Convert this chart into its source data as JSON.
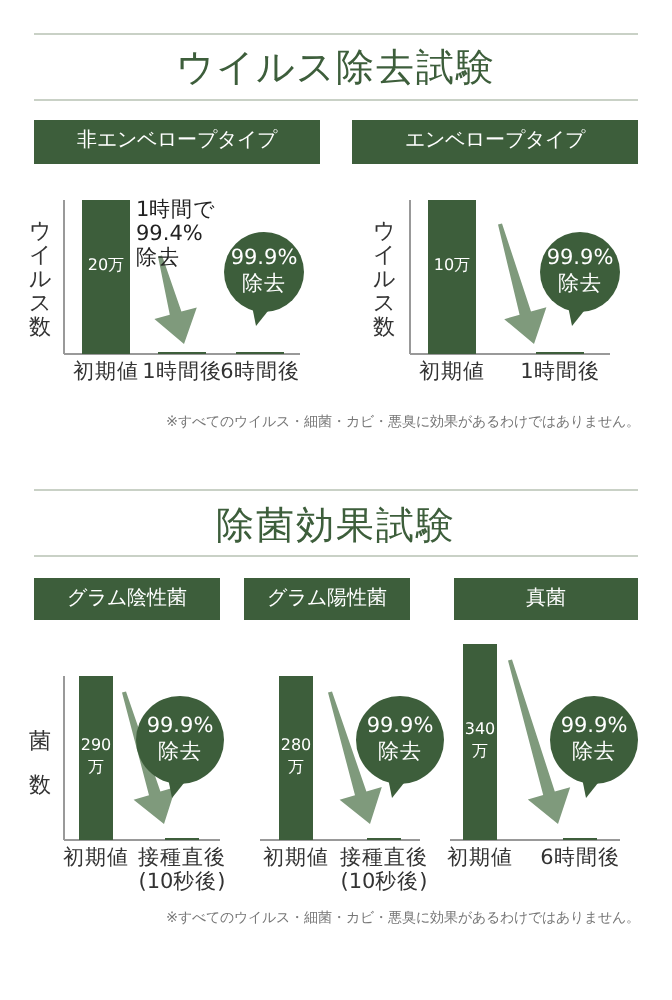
{
  "chart_data": [
    {
      "type": "other",
      "title": "ウイルス除去試験"
    },
    {
      "type": "bar",
      "subtitle": "非エンベロープタイプ",
      "ylabel": "ウイルス数",
      "categories": [
        "初期値",
        "1時間後",
        "6時間後"
      ],
      "values": [
        20,
        0,
        0
      ],
      "value_labels": [
        "20万",
        null,
        null
      ],
      "color": "#3d5e3b",
      "annotations": [
        "1時間で99.4%除去",
        "99.9%除去"
      ]
    },
    {
      "type": "bar",
      "subtitle": "エンベロープタイプ",
      "ylabel": "ウイルス数",
      "categories": [
        "初期値",
        "1時間後"
      ],
      "values": [
        10,
        0
      ],
      "value_labels": [
        "10万",
        null
      ],
      "color": "#3d5e3b",
      "annotations": [
        "99.9%除去",
        "※すべてのウイルス・細菌・カビ・悪臭に効果があるわけではありません。"
      ]
    },
    {
      "type": "other",
      "title": "除菌効果試験"
    },
    {
      "type": "bar",
      "subtitle": "グラム陰性菌",
      "ylabel": "菌数",
      "categories": [
        "初期値",
        "接種直後(10秒後)"
      ],
      "values": [
        290,
        0
      ],
      "value_labels": [
        "290万",
        null
      ],
      "color": "#3d5e3b",
      "annotations": [
        "99.9%除去"
      ]
    },
    {
      "type": "bar",
      "subtitle": "グラム陽性菌",
      "categories": [
        "初期値",
        "接種直後(10秒後)"
      ],
      "values": [
        280,
        0
      ],
      "value_labels": [
        "280万",
        null
      ],
      "color": "#3d5e3b",
      "annotations": [
        "99.9%除去"
      ]
    },
    {
      "type": "bar",
      "subtitle": "真菌",
      "categories": [
        "初期値",
        "6時間後"
      ],
      "values": [
        340,
        0
      ],
      "value_labels": [
        "340万",
        null
      ],
      "color": "#3d5e3b",
      "annotations": [
        "99.9%除去",
        "※すべてのウイルス・細菌・カビ・悪臭に効果があるわけではありません。"
      ]
    }
  ]
}
